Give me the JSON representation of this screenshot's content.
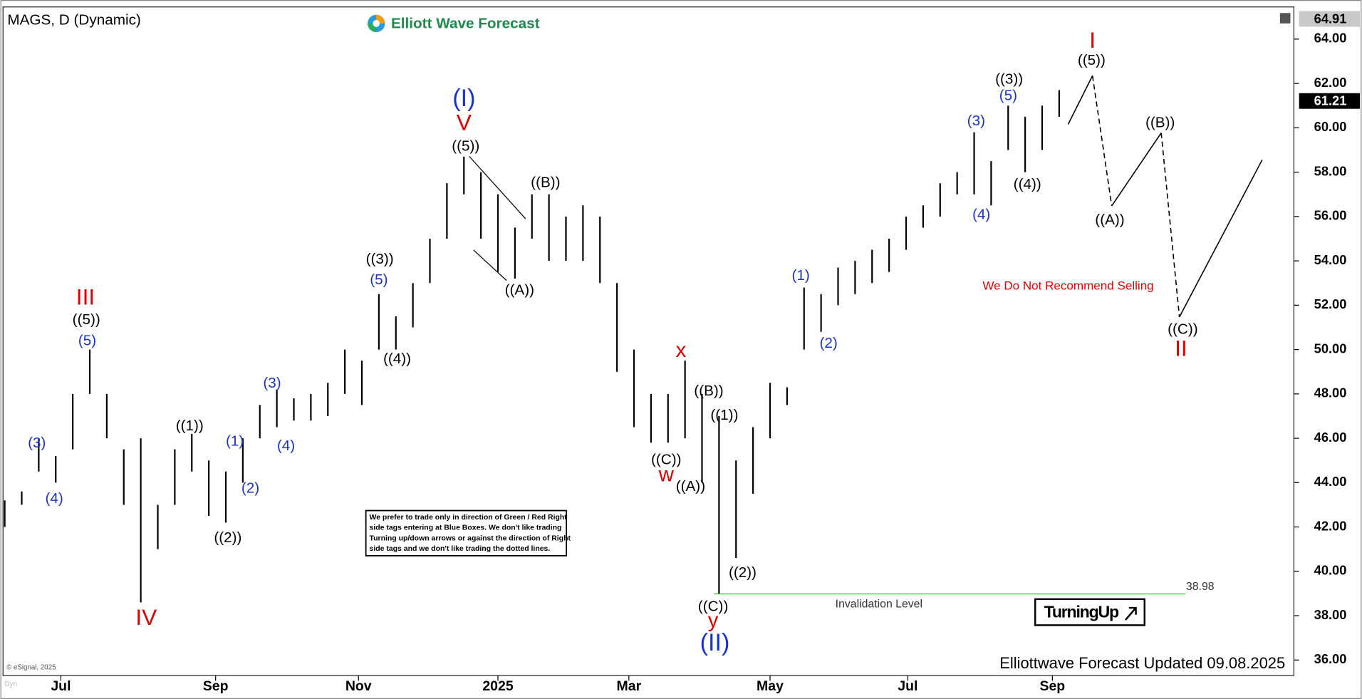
{
  "chart_data": {
    "type": "ohlc",
    "title": "MAGS, D (Dynamic)",
    "logo": "Elliott Wave Forecast",
    "ylim": [
      35.3,
      65.45
    ],
    "xlim": [
      -0.1,
      75.8
    ],
    "yticks": [
      {
        "value": 36,
        "label": "36.00"
      },
      {
        "value": 38,
        "label": "38.00"
      },
      {
        "value": 40,
        "label": "40.00"
      },
      {
        "value": 42,
        "label": "42.00"
      },
      {
        "value": 44,
        "label": "44.00"
      },
      {
        "value": 46,
        "label": "46.00"
      },
      {
        "value": 48,
        "label": "48.00"
      },
      {
        "value": 50,
        "label": "50.00"
      },
      {
        "value": 52,
        "label": "52.00"
      },
      {
        "value": 54,
        "label": "54.00"
      },
      {
        "value": 56,
        "label": "56.00"
      },
      {
        "value": 58,
        "label": "58.00"
      },
      {
        "value": 60,
        "label": "60.00"
      },
      {
        "value": 62,
        "label": "62.00"
      },
      {
        "value": 64,
        "label": "64.00"
      }
    ],
    "xticks": [
      {
        "value": 3.3,
        "label": "Jul"
      },
      {
        "value": 12.4,
        "label": "Sep"
      },
      {
        "value": 20.8,
        "label": "Nov"
      },
      {
        "value": 29.0,
        "label": "2025"
      },
      {
        "value": 36.7,
        "label": "Mar"
      },
      {
        "value": 45.0,
        "label": "May"
      },
      {
        "value": 53.1,
        "label": "Jul"
      },
      {
        "value": 61.6,
        "label": "Sep"
      }
    ],
    "bar_color": "#000000",
    "bars": [
      {
        "low": 42.0,
        "high": 43.2
      },
      {
        "low": 43.0,
        "high": 43.6
      },
      {
        "low": 44.5,
        "high": 46.0
      },
      {
        "low": 44.0,
        "high": 45.2
      },
      {
        "low": 45.5,
        "high": 48.0
      },
      {
        "low": 48.0,
        "high": 50.0
      },
      {
        "low": 46.0,
        "high": 48.0
      },
      {
        "low": 43.0,
        "high": 45.5
      },
      {
        "low": 38.6,
        "high": 46.0
      },
      {
        "low": 41.0,
        "high": 43.0
      },
      {
        "low": 43.0,
        "high": 45.5
      },
      {
        "low": 44.5,
        "high": 46.2
      },
      {
        "low": 42.5,
        "high": 45.0
      },
      {
        "low": 42.2,
        "high": 44.5
      },
      {
        "low": 44.0,
        "high": 46.0
      },
      {
        "low": 46.0,
        "high": 47.5
      },
      {
        "low": 46.5,
        "high": 48.2
      },
      {
        "low": 46.8,
        "high": 47.8
      },
      {
        "low": 46.8,
        "high": 48.0
      },
      {
        "low": 47.0,
        "high": 48.5
      },
      {
        "low": 48.0,
        "high": 50.0
      },
      {
        "low": 47.5,
        "high": 49.5
      },
      {
        "low": 50.0,
        "high": 52.5
      },
      {
        "low": 50.0,
        "high": 51.5
      },
      {
        "low": 51.0,
        "high": 53.0
      },
      {
        "low": 53.0,
        "high": 55.0
      },
      {
        "low": 55.0,
        "high": 57.5
      },
      {
        "low": 57.0,
        "high": 58.7
      },
      {
        "low": 55.0,
        "high": 58.0
      },
      {
        "low": 53.5,
        "high": 57.0
      },
      {
        "low": 53.2,
        "high": 55.5
      },
      {
        "low": 55.0,
        "high": 57.0
      },
      {
        "low": 54.0,
        "high": 57.0
      },
      {
        "low": 54.0,
        "high": 56.0
      },
      {
        "low": 54.0,
        "high": 56.5
      },
      {
        "low": 53.0,
        "high": 56.0
      },
      {
        "low": 49.0,
        "high": 53.0
      },
      {
        "low": 46.5,
        "high": 50.0
      },
      {
        "low": 45.8,
        "high": 48.0
      },
      {
        "low": 45.8,
        "high": 48.0
      },
      {
        "low": 46.0,
        "high": 49.5
      },
      {
        "low": 44.0,
        "high": 48.0
      },
      {
        "low": 39.0,
        "high": 47.0
      },
      {
        "low": 40.6,
        "high": 45.0
      },
      {
        "low": 43.5,
        "high": 46.5
      },
      {
        "low": 46.0,
        "high": 48.5
      },
      {
        "low": 47.5,
        "high": 48.3
      },
      {
        "low": 50.0,
        "high": 52.8
      },
      {
        "low": 50.8,
        "high": 52.5
      },
      {
        "low": 52.0,
        "high": 53.7
      },
      {
        "low": 52.5,
        "high": 54.0
      },
      {
        "low": 53.0,
        "high": 54.5
      },
      {
        "low": 53.5,
        "high": 55.0
      },
      {
        "low": 54.5,
        "high": 56.0
      },
      {
        "low": 55.5,
        "high": 56.5
      },
      {
        "low": 56.0,
        "high": 57.5
      },
      {
        "low": 57.0,
        "high": 58.0
      },
      {
        "low": 57.0,
        "high": 59.8
      },
      {
        "low": 56.5,
        "high": 58.5
      },
      {
        "low": 59.0,
        "high": 61.0
      },
      {
        "low": 58.0,
        "high": 60.5
      },
      {
        "low": 59.0,
        "high": 61.0
      },
      {
        "low": 60.5,
        "high": 61.7
      }
    ],
    "projection": {
      "x": [
        62.53,
        63.96,
        65.09,
        68.0,
        69.07,
        73.94
      ],
      "y": [
        60.16,
        62.35,
        56.48,
        59.77,
        51.47,
        58.56
      ],
      "dashed": [
        false,
        true,
        false,
        true,
        false
      ]
    },
    "price_tags": [
      {
        "value": 64.91,
        "color": "#c8c8c8",
        "text_color": "#000000"
      },
      {
        "value": 61.21,
        "color": "#000000",
        "text_color": "#ffffff"
      }
    ],
    "invalidation": {
      "value": 38.98,
      "label": "Invalidation Level",
      "color": "#33cc33"
    },
    "annotations": [
      {
        "text": "III",
        "color": "#e00000"
      },
      {
        "text": "IV",
        "color": "#e00000"
      },
      {
        "text": "V",
        "color": "#e00000"
      },
      {
        "text": "x",
        "color": "#e00000"
      },
      {
        "text": "w",
        "color": "#e00000"
      },
      {
        "text": "y",
        "color": "#e00000"
      },
      {
        "text": "I",
        "color": "#e00000"
      },
      {
        "text": "II",
        "color": "#e00000"
      },
      {
        "text": "(I)",
        "color": "#1a33cc"
      },
      {
        "text": "(II)",
        "color": "#1a33cc"
      },
      {
        "text": "(3)",
        "color": "#1a33cc"
      },
      {
        "text": "(4)",
        "color": "#1a33cc"
      },
      {
        "text": "(5)",
        "color": "#1a33cc"
      },
      {
        "text": "(1)",
        "color": "#1a33cc"
      },
      {
        "text": "(2)",
        "color": "#1a33cc"
      },
      {
        "text": "(3)",
        "color": "#1a33cc"
      },
      {
        "text": "(4)",
        "color": "#1a33cc"
      },
      {
        "text": "(5)",
        "color": "#1a33cc"
      },
      {
        "text": "(1)",
        "color": "#1a33cc"
      },
      {
        "text": "(2)",
        "color": "#1a33cc"
      },
      {
        "text": "(3)",
        "color": "#1a33cc"
      },
      {
        "text": "(4)",
        "color": "#1a33cc"
      },
      {
        "text": "(5)",
        "color": "#1a33cc"
      },
      {
        "text": "((5))",
        "color": "#000000"
      },
      {
        "text": "((1))",
        "color": "#000000"
      },
      {
        "text": "((2))",
        "color": "#000000"
      },
      {
        "text": "((3))",
        "color": "#000000"
      },
      {
        "text": "((4))",
        "color": "#000000"
      },
      {
        "text": "((5))",
        "color": "#000000"
      },
      {
        "text": "((A))",
        "color": "#000000"
      },
      {
        "text": "((B))",
        "color": "#000000"
      },
      {
        "text": "((C))",
        "color": "#000000"
      },
      {
        "text": "((A))",
        "color": "#000000"
      },
      {
        "text": "((B))",
        "color": "#000000"
      },
      {
        "text": "((1))",
        "color": "#000000"
      },
      {
        "text": "((2))",
        "color": "#000000"
      },
      {
        "text": "((C))",
        "color": "#000000"
      },
      {
        "text": "((3))",
        "color": "#000000"
      },
      {
        "text": "((4))",
        "color": "#000000"
      },
      {
        "text": "((5))",
        "color": "#000000"
      },
      {
        "text": "((A))",
        "color": "#000000"
      },
      {
        "text": "((B))",
        "color": "#000000"
      },
      {
        "text": "((C))",
        "color": "#000000"
      }
    ],
    "warning": "We Do Not Recommend Selling",
    "note_lines": [
      "We prefer to trade only in direction of Green / Red Right",
      "side tags entering at Blue Boxes. We don't like trading",
      "Turning up/down arrows or against the direction of Right",
      "side tags and we don't like trading the dotted lines."
    ],
    "badge": "TurningUp",
    "footer": "Elliottwave Forecast Updated 09.08.2025",
    "copyright": "© eSignal, 2025",
    "mode": "Dyn"
  }
}
